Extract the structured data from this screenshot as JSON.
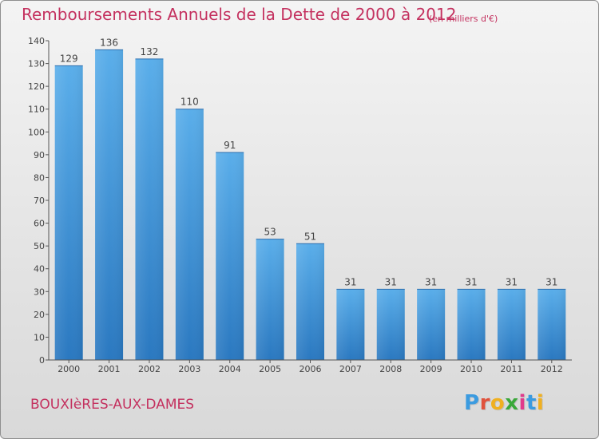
{
  "title": "Remboursements Annuels de la Dette de 2000 à 2012",
  "unit_note": "(en milliers d'€)",
  "commune": "BOUXIèRES-AUX-DAMES",
  "logo": {
    "letters": [
      "P",
      "r",
      "o",
      "x",
      "i",
      "t",
      "i"
    ],
    "colors": [
      "#3b9be0",
      "#e0513b",
      "#f0b020",
      "#3aa83a",
      "#e03b8c",
      "#3b9be0",
      "#f0b020"
    ]
  },
  "colors": {
    "bar": "#4fa3e3",
    "bar_dark": "#2a78c0",
    "title": "#c4315f",
    "axis": "#555555"
  },
  "chart_data": {
    "type": "bar",
    "categories": [
      "2000",
      "2001",
      "2002",
      "2003",
      "2004",
      "2005",
      "2006",
      "2007",
      "2008",
      "2009",
      "2010",
      "2011",
      "2012"
    ],
    "values": [
      129,
      136,
      132,
      110,
      91,
      53,
      51,
      31,
      31,
      31,
      31,
      31,
      31
    ],
    "ylim": [
      0,
      140
    ],
    "yticks": [
      0,
      10,
      20,
      30,
      40,
      50,
      60,
      70,
      80,
      90,
      100,
      110,
      120,
      130,
      140
    ],
    "grid": false,
    "xlabel": "",
    "ylabel": ""
  }
}
